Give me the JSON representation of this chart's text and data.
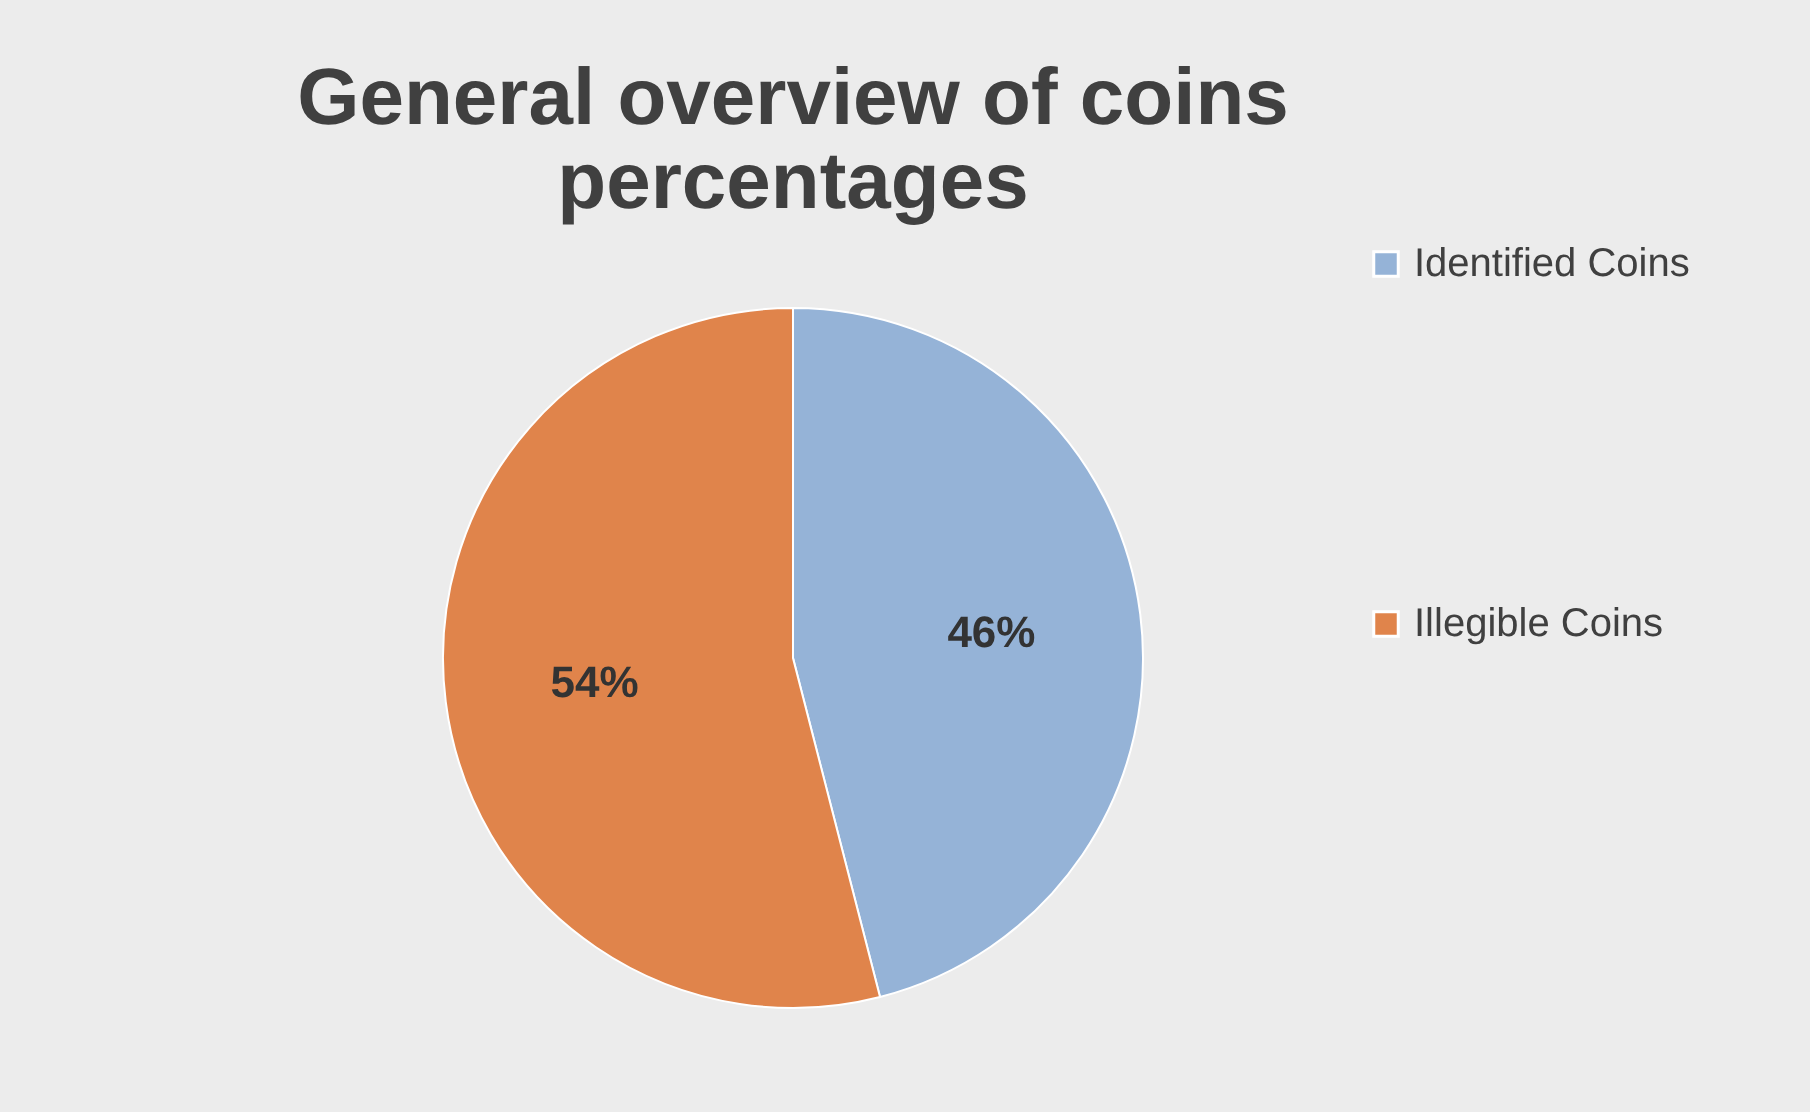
{
  "chart_data": {
    "type": "pie",
    "title": "General overview of coins percentages",
    "categories": [
      "Identified Coins",
      "Illegible Coins"
    ],
    "values": [
      46,
      54
    ],
    "colors": [
      "#95b3d7",
      "#e0844b"
    ],
    "value_labels": [
      "46%",
      "54%"
    ],
    "legend": "right"
  }
}
